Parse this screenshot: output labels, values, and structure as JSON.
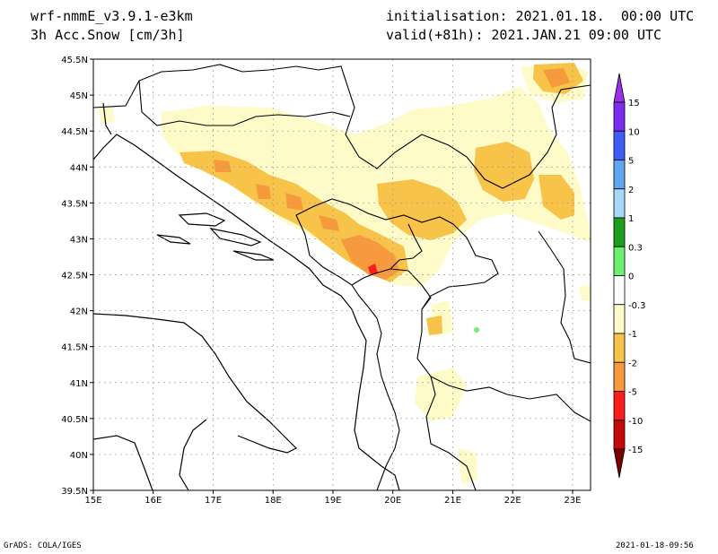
{
  "header": {
    "model": "wrf-nmmE_v3.9.1-e3km",
    "field": "3h Acc.Snow [cm/3h]",
    "init": "initialisation: 2021.01.18.  00:00 UTC",
    "valid": "valid(+81h): 2021.JAN.21 09:00 UTC"
  },
  "map": {
    "lon_labels": [
      "15E",
      "16E",
      "17E",
      "18E",
      "19E",
      "20E",
      "21E",
      "22E",
      "23E"
    ],
    "lat_labels": [
      "45.5N",
      "45N",
      "44.5N",
      "44N",
      "43.5N",
      "43N",
      "42.5N",
      "42N",
      "41.5N",
      "41N",
      "40.5N",
      "40N",
      "39.5N"
    ],
    "lon_range": [
      15,
      23.3
    ],
    "lat_range": [
      39.5,
      45.5
    ]
  },
  "colorbar": {
    "levels": [
      "15",
      "10",
      "5",
      "2",
      "1",
      "0.3",
      "0",
      "-0.3",
      "-1",
      "-2",
      "-5",
      "-10",
      "-15"
    ],
    "colors": [
      "#7a2cf0",
      "#3f5cf6",
      "#5fa7f0",
      "#a8d7f8",
      "#1e9e1e",
      "#6fef6f",
      "#ffffff",
      "#fffbc8",
      "#f7c348",
      "#f79a3e",
      "#fb1c1c",
      "#c40a0a",
      "#9c0000"
    ],
    "top_arrow_color": "#9a30e8",
    "bottom_arrow_color": "#7a0000"
  },
  "footer": {
    "left": "GrADS: COLA/IGES",
    "right": "2021-01-18-09:56"
  }
}
